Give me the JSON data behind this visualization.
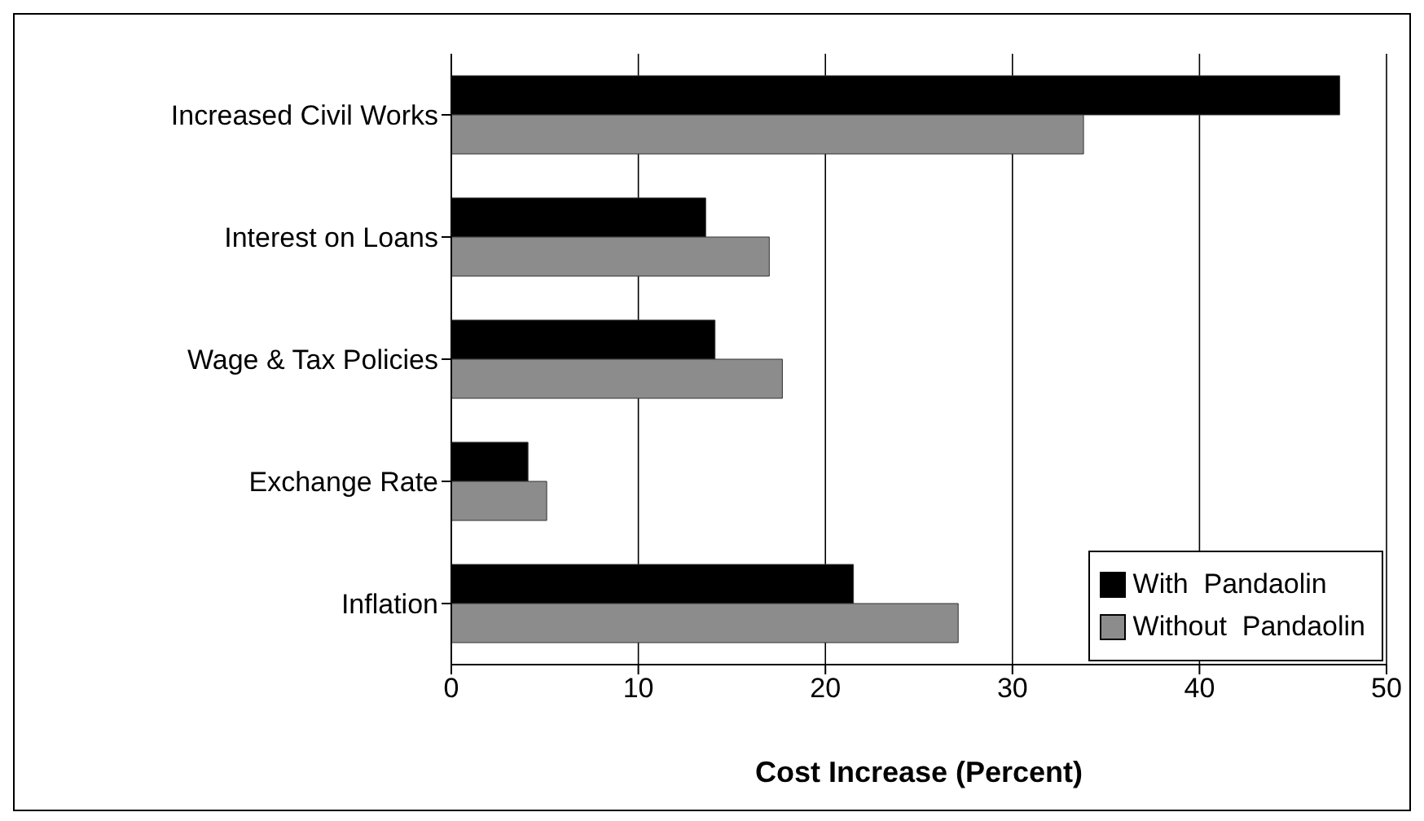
{
  "chart_data": {
    "type": "bar",
    "orientation": "horizontal",
    "xlabel": "Cost Increase (Percent)",
    "categories": [
      "Increased Civil Works",
      "Interest on Loans",
      "Wage & Tax Policies",
      "Exchange Rate",
      "Inflation"
    ],
    "series": [
      {
        "name": "With  Pandaolin",
        "color": "#000000",
        "values": [
          47.5,
          13.6,
          14.1,
          4.1,
          21.5
        ]
      },
      {
        "name": "Without  Pandaolin",
        "color": "#8c8c8c",
        "values": [
          33.8,
          17.0,
          17.7,
          5.1,
          27.1
        ]
      }
    ],
    "xlim": [
      0,
      50
    ],
    "xticks": [
      0,
      10,
      20,
      30,
      40,
      50
    ],
    "grid": "x",
    "legend": "bottom right"
  }
}
